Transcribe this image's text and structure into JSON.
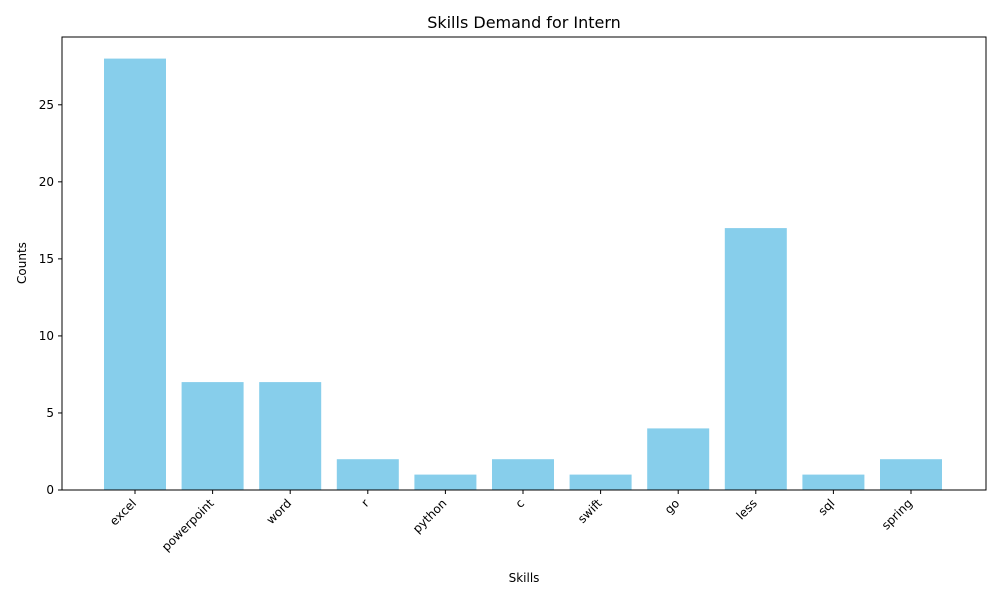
{
  "chart_data": {
    "type": "bar",
    "title": "Skills Demand for Intern",
    "xlabel": "Skills",
    "ylabel": "Counts",
    "categories": [
      "excel",
      "powerpoint",
      "word",
      "r",
      "python",
      "c",
      "swift",
      "go",
      "less",
      "sql",
      "spring"
    ],
    "values": [
      28,
      7,
      7,
      2,
      1,
      2,
      1,
      4,
      17,
      1,
      2
    ],
    "ylim": [
      0,
      29.4
    ],
    "yticks": [
      0,
      5,
      10,
      15,
      20,
      25
    ],
    "bar_color": "#87CEEB",
    "grid": false,
    "legend": "none"
  }
}
